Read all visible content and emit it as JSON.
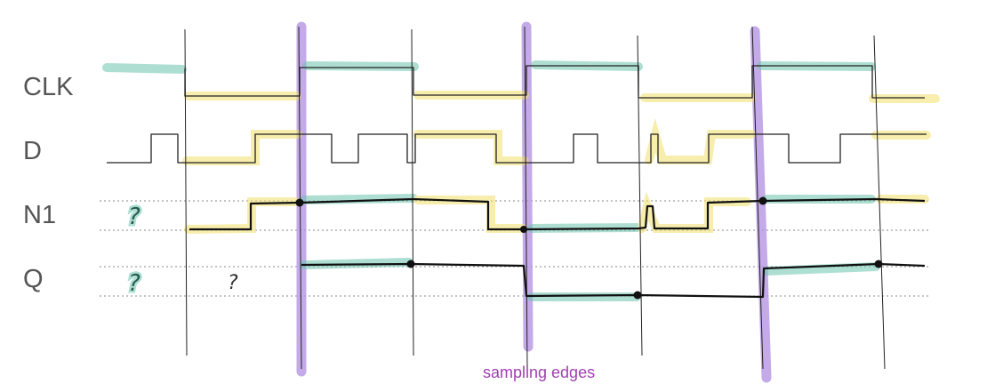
{
  "signals": {
    "clk": "CLK",
    "d": "D",
    "n1": "N1",
    "q": "Q"
  },
  "unknown_mark": "?",
  "caption": "sampling edges",
  "colors": {
    "high_highlight": "#6cc4ae",
    "low_highlight": "#f2e06a",
    "sampling_edge": "#b08ee0",
    "caption": "#a040b0",
    "trace": "#222222",
    "label": "#555555"
  }
}
